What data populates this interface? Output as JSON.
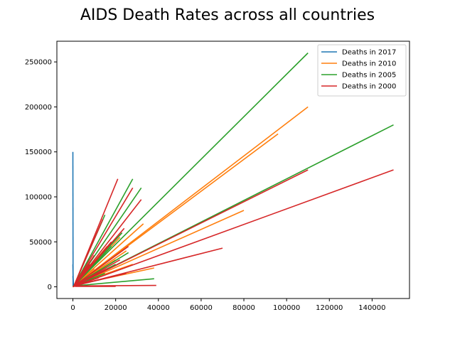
{
  "chart_data": {
    "type": "line",
    "title": "AIDS Death Rates across all countries",
    "xlabel": "",
    "ylabel": "",
    "xlim": [
      -7500,
      157500
    ],
    "ylim": [
      -13000,
      273000
    ],
    "xticks": [
      0,
      20000,
      40000,
      60000,
      80000,
      100000,
      120000,
      140000
    ],
    "xtick_labels": [
      "0",
      "20000",
      "40000",
      "60000",
      "80000",
      "100000",
      "120000",
      "140000"
    ],
    "yticks": [
      0,
      50000,
      100000,
      150000,
      200000,
      250000
    ],
    "ytick_labels": [
      "0",
      "50000",
      "100000",
      "150000",
      "200000",
      "250000"
    ],
    "grid": false,
    "legend_position": "top-right",
    "series": [
      {
        "name": "Deaths in 2017",
        "color": "#1f77b4",
        "segments": [
          [
            [
              0,
              150000
            ],
            [
              100,
              100
            ]
          ],
          [
            [
              0,
              25000
            ],
            [
              200,
              0
            ]
          ],
          [
            [
              0,
              12000
            ],
            [
              300,
              500
            ]
          ]
        ]
      },
      {
        "name": "Deaths in 2010",
        "color": "#ff7f0e",
        "segments": [
          [
            [
              0,
              0
            ],
            [
              110000,
              200000
            ]
          ],
          [
            [
              0,
              0
            ],
            [
              96000,
              170000
            ]
          ],
          [
            [
              500,
              1000
            ],
            [
              80000,
              85000
            ]
          ],
          [
            [
              500,
              1000
            ],
            [
              33000,
              70000
            ]
          ],
          [
            [
              500,
              2000
            ],
            [
              28000,
              25000
            ]
          ],
          [
            [
              500,
              1000
            ],
            [
              22000,
              55000
            ]
          ],
          [
            [
              1000,
              2000
            ],
            [
              38000,
              21000
            ]
          ],
          [
            [
              500,
              1000
            ],
            [
              16000,
              45000
            ]
          ],
          [
            [
              500,
              1000
            ],
            [
              25000,
              40000
            ]
          ],
          [
            [
              500,
              1000
            ],
            [
              13000,
              35000
            ]
          ],
          [
            [
              500,
              1000
            ],
            [
              20000,
              30000
            ]
          ],
          [
            [
              500,
              1000
            ],
            [
              10000,
              20000
            ]
          ],
          [
            [
              500,
              1000
            ],
            [
              17000,
              15000
            ]
          ]
        ]
      },
      {
        "name": "Deaths in 2005",
        "color": "#2ca02c",
        "segments": [
          [
            [
              0,
              0
            ],
            [
              110000,
              260000
            ]
          ],
          [
            [
              0,
              0
            ],
            [
              150000,
              180000
            ]
          ],
          [
            [
              500,
              1000
            ],
            [
              28000,
              120000
            ]
          ],
          [
            [
              500,
              1000
            ],
            [
              32000,
              110000
            ]
          ],
          [
            [
              500,
              1000
            ],
            [
              15000,
              80000
            ]
          ],
          [
            [
              500,
              1000
            ],
            [
              38000,
              9000
            ]
          ],
          [
            [
              500,
              2000
            ],
            [
              23000,
              60000
            ]
          ],
          [
            [
              500,
              1000
            ],
            [
              18000,
              45000
            ]
          ],
          [
            [
              500,
              1000
            ],
            [
              26000,
              38000
            ]
          ],
          [
            [
              500,
              1000
            ],
            [
              12000,
              30000
            ]
          ],
          [
            [
              500,
              1000
            ],
            [
              20000,
              25000
            ]
          ],
          [
            [
              500,
              1000
            ],
            [
              15000,
              15000
            ]
          ]
        ]
      },
      {
        "name": "Deaths in 2000",
        "color": "#d62728",
        "segments": [
          [
            [
              0,
              0
            ],
            [
              150000,
              130000
            ]
          ],
          [
            [
              0,
              0
            ],
            [
              110000,
              130000
            ]
          ],
          [
            [
              500,
              1000
            ],
            [
              70000,
              43000
            ]
          ],
          [
            [
              500,
              1000
            ],
            [
              21000,
              120000
            ]
          ],
          [
            [
              500,
              1000
            ],
            [
              28000,
              110000
            ]
          ],
          [
            [
              500,
              1000
            ],
            [
              32000,
              97000
            ]
          ],
          [
            [
              500,
              1000
            ],
            [
              14000,
              75000
            ]
          ],
          [
            [
              500,
              1000
            ],
            [
              39000,
              1500
            ]
          ],
          [
            [
              1000,
              500
            ],
            [
              20000,
              500
            ]
          ],
          [
            [
              500,
              1000
            ],
            [
              24000,
              65000
            ]
          ],
          [
            [
              500,
              1000
            ],
            [
              18000,
              50000
            ]
          ],
          [
            [
              500,
              1000
            ],
            [
              26000,
              45000
            ]
          ],
          [
            [
              500,
              1000
            ],
            [
              10000,
              35000
            ]
          ],
          [
            [
              500,
              1000
            ],
            [
              22000,
              30000
            ]
          ],
          [
            [
              500,
              1000
            ],
            [
              8000,
              25000
            ]
          ],
          [
            [
              500,
              1000
            ],
            [
              16000,
              20000
            ]
          ],
          [
            [
              500,
              1000
            ],
            [
              25000,
              15000
            ]
          ],
          [
            [
              500,
              1000
            ],
            [
              12000,
              10000
            ]
          ],
          [
            [
              500,
              500
            ],
            [
              6000,
              5000
            ]
          ]
        ]
      }
    ]
  }
}
